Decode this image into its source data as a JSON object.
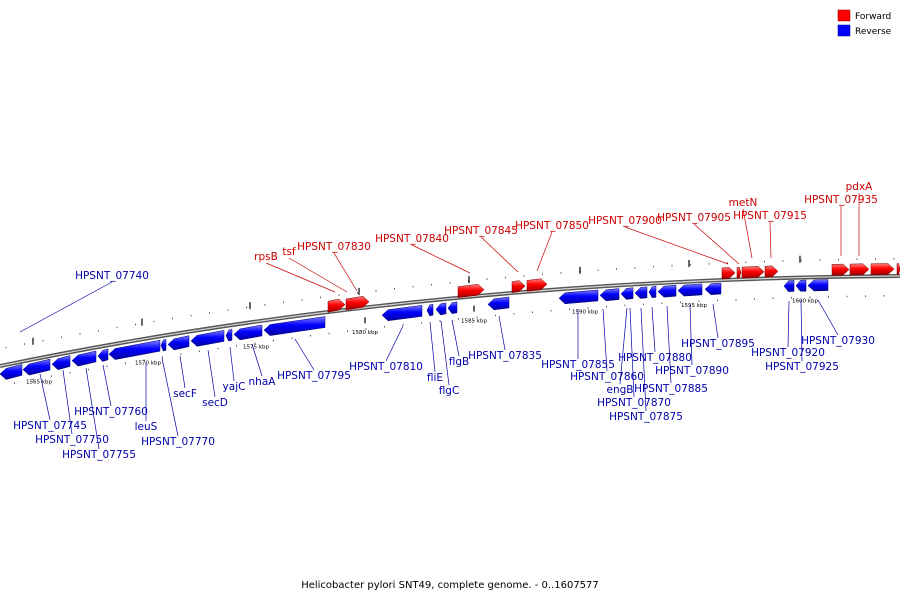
{
  "title": "Helicobacter pylori SNT49, complete genome. - 0..1607577",
  "legend": [
    {
      "label": "Forward",
      "color": "#ff0000"
    },
    {
      "label": "Reverse",
      "color": "#0000ff"
    }
  ],
  "ticks": [
    "1565 kbp",
    "1570 kbp",
    "1575 kbp",
    "1580 kbp",
    "1585 kbp",
    "1590 kbp",
    "1595 kbp",
    "1600 kbp"
  ],
  "forward_labels": [
    "rpsB",
    "tsf",
    "HPSNT_07830",
    "HPSNT_07840",
    "HPSNT_07845",
    "HPSNT_07850",
    "HPSNT_07900",
    "HPSNT_07905",
    "metN",
    "HPSNT_07915",
    "pdxA",
    "HPSNT_07935"
  ],
  "reverse_labels": [
    "HPSNT_07740",
    "HPSNT_07745",
    "HPSNT_07750",
    "HPSNT_07755",
    "HPSNT_07760",
    "leuS",
    "HPSNT_07770",
    "secF",
    "secD",
    "yajC",
    "nhaA",
    "HPSNT_07795",
    "HPSNT_07810",
    "fliE",
    "flgC",
    "flgB",
    "HPSNT_07835",
    "HPSNT_07855",
    "HPSNT_07860",
    "engB",
    "HPSNT_07870",
    "HPSNT_07875",
    "HPSNT_07880",
    "HPSNT_07885",
    "HPSNT_07890",
    "HPSNT_07895",
    "HPSNT_07920",
    "HPSNT_07925",
    "HPSNT_07930"
  ]
}
